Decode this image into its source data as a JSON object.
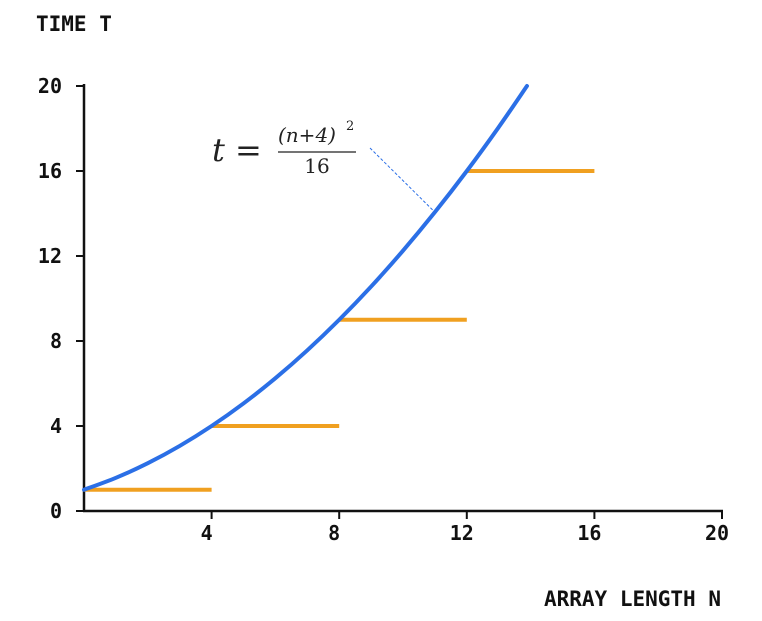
{
  "chart_data": {
    "type": "line",
    "xlabel": "ARRAY LENGTH N",
    "ylabel": "TIME T",
    "xlim": [
      0,
      20
    ],
    "ylim": [
      0,
      20
    ],
    "x_ticks": [
      4,
      8,
      12,
      16,
      20
    ],
    "y_ticks": [
      0,
      4,
      8,
      12,
      16,
      20
    ],
    "grid": false,
    "series": [
      {
        "kind": "curve",
        "formula": "t = (n+4)^2 / 16",
        "color": "#2b6fe6",
        "x": [
          0,
          1,
          2,
          3,
          4,
          5,
          6,
          7,
          8,
          9,
          10,
          11,
          12,
          13,
          14
        ],
        "y": [
          1,
          1.5625,
          2.25,
          3.0625,
          4,
          5.0625,
          6.25,
          7.5625,
          9,
          10.5625,
          12.25,
          14.0625,
          16,
          18.0625,
          20.25
        ]
      },
      {
        "kind": "steps",
        "color": "#f0a020",
        "segments": [
          {
            "x": [
              0,
              4
            ],
            "y": 1
          },
          {
            "x": [
              4,
              8
            ],
            "y": 4
          },
          {
            "x": [
              8,
              12
            ],
            "y": 9
          },
          {
            "x": [
              12,
              16
            ],
            "y": 16
          }
        ]
      }
    ],
    "annotation": {
      "lhs": "t =",
      "numerator": "(n+4)",
      "exponent": "2",
      "denominator": "16",
      "points_to": {
        "x": 11,
        "y": 14.0625
      }
    }
  }
}
